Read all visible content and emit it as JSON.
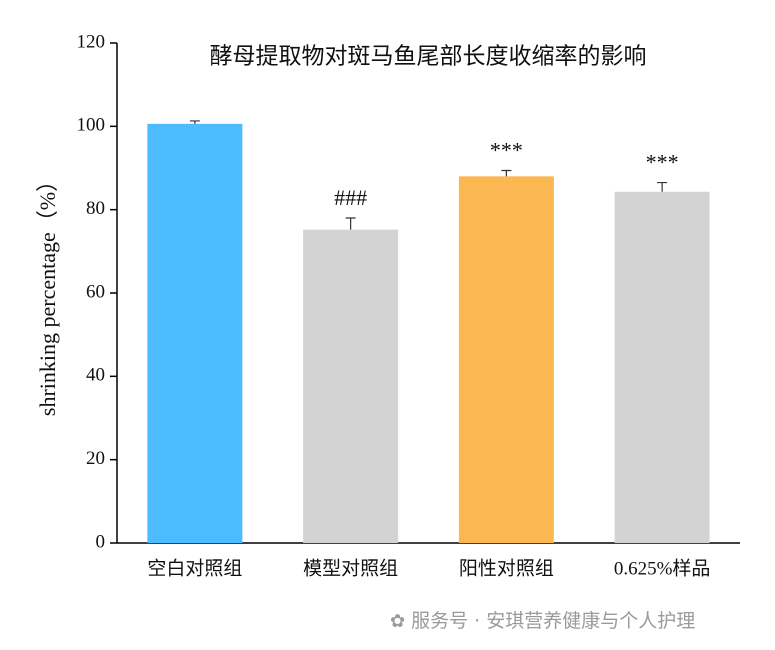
{
  "chart_data": {
    "type": "bar",
    "title": "酵母提取物对斑马鱼尾部长度收缩率的影响",
    "y_label": "shrinking percentage（%）",
    "categories": [
      "空白对照组",
      "模型对照组",
      "阳性对照组",
      "0.625%样品"
    ],
    "values": [
      100.6,
      75.2,
      88.0,
      84.3
    ],
    "errors": [
      0.7,
      2.8,
      1.4,
      2.2
    ],
    "annotations": [
      null,
      "###",
      "***",
      "***"
    ],
    "colors": [
      "#4dbbff",
      "#d3d3d3",
      "#fbb752",
      "#d3d3d3"
    ],
    "ylim": [
      0,
      120
    ],
    "yticks": [
      0,
      20,
      40,
      60,
      80,
      100,
      120
    ],
    "grid": false
  },
  "watermark": "服务号 · 安琪营养健康与个人护理"
}
